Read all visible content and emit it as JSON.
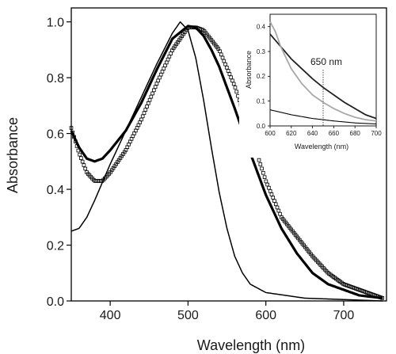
{
  "chart_data": [
    {
      "type": "line",
      "title": "",
      "xlabel": "Wavelength (nm)",
      "ylabel": "Absorbance",
      "xlim": [
        350,
        755
      ],
      "ylim": [
        0,
        1.05
      ],
      "xticks": [
        400,
        500,
        600,
        700
      ],
      "xtick_labels": [
        "400",
        "500",
        "600",
        "700"
      ],
      "yticks": [
        0.0,
        0.2,
        0.4,
        0.6,
        0.8,
        1.0
      ],
      "ytick_labels": [
        "0.0",
        "0.2",
        "0.4",
        "0.6",
        "0.8",
        "1.0"
      ],
      "grid": false,
      "series": [
        {
          "style": "thin-line",
          "color": "#000000",
          "x": [
            350,
            360,
            370,
            380,
            400,
            420,
            440,
            460,
            480,
            490,
            500,
            510,
            520,
            530,
            540,
            550,
            560,
            570,
            580,
            600,
            650,
            700,
            750
          ],
          "y": [
            0.25,
            0.26,
            0.3,
            0.36,
            0.49,
            0.61,
            0.73,
            0.85,
            0.96,
            1.0,
            0.97,
            0.87,
            0.72,
            0.55,
            0.39,
            0.26,
            0.16,
            0.1,
            0.06,
            0.03,
            0.01,
            0.005,
            0.0
          ]
        },
        {
          "style": "thick-line",
          "color": "#000000",
          "x": [
            350,
            360,
            370,
            380,
            390,
            400,
            420,
            440,
            460,
            480,
            500,
            510,
            520,
            530,
            540,
            560,
            580,
            600,
            620,
            640,
            660,
            680,
            700,
            720,
            750
          ],
          "y": [
            0.61,
            0.55,
            0.51,
            0.5,
            0.51,
            0.54,
            0.61,
            0.71,
            0.83,
            0.94,
            0.985,
            0.98,
            0.95,
            0.9,
            0.84,
            0.69,
            0.53,
            0.38,
            0.26,
            0.17,
            0.1,
            0.06,
            0.04,
            0.02,
            0.01
          ]
        },
        {
          "style": "open-square-markers",
          "color": "#000000",
          "x": [
            350,
            360,
            370,
            380,
            390,
            400,
            420,
            440,
            460,
            480,
            500,
            510,
            520,
            540,
            560,
            580,
            600,
            620,
            640,
            660,
            680,
            700,
            720,
            740,
            750
          ],
          "y": [
            0.62,
            0.53,
            0.46,
            0.43,
            0.43,
            0.46,
            0.54,
            0.65,
            0.78,
            0.9,
            0.98,
            0.98,
            0.97,
            0.9,
            0.77,
            0.6,
            0.43,
            0.3,
            0.23,
            0.16,
            0.1,
            0.06,
            0.04,
            0.02,
            0.01
          ]
        }
      ]
    },
    {
      "type": "line",
      "title": "",
      "xlabel": "Wavelength (nm)",
      "ylabel": "Absorbance",
      "xlim": [
        600,
        700
      ],
      "ylim": [
        0,
        0.45
      ],
      "xticks": [
        600,
        620,
        640,
        660,
        680,
        700
      ],
      "xtick_labels": [
        "600",
        "620",
        "640",
        "660",
        "680",
        "700"
      ],
      "yticks": [
        0.0,
        0.1,
        0.2,
        0.3,
        0.4
      ],
      "ytick_labels": [
        "0.0",
        "0.1",
        "0.2",
        "0.3",
        "0.4"
      ],
      "grid": false,
      "annotation": {
        "text": "650 nm",
        "x": 650
      },
      "series": [
        {
          "style": "dark-line",
          "color": "#222222",
          "x": [
            600,
            610,
            620,
            630,
            640,
            650,
            660,
            670,
            680,
            690,
            700
          ],
          "y": [
            0.37,
            0.32,
            0.27,
            0.23,
            0.19,
            0.155,
            0.125,
            0.095,
            0.07,
            0.045,
            0.03
          ]
        },
        {
          "style": "gray-line",
          "color": "#a8a8a8",
          "x": [
            600,
            605,
            610,
            620,
            630,
            640,
            650,
            660,
            670,
            680,
            690,
            700
          ],
          "y": [
            0.42,
            0.38,
            0.32,
            0.23,
            0.17,
            0.125,
            0.095,
            0.07,
            0.05,
            0.035,
            0.025,
            0.02
          ]
        },
        {
          "style": "thin-line",
          "color": "#000000",
          "x": [
            600,
            620,
            640,
            660,
            680,
            700
          ],
          "y": [
            0.065,
            0.045,
            0.03,
            0.02,
            0.012,
            0.008
          ]
        }
      ]
    }
  ]
}
